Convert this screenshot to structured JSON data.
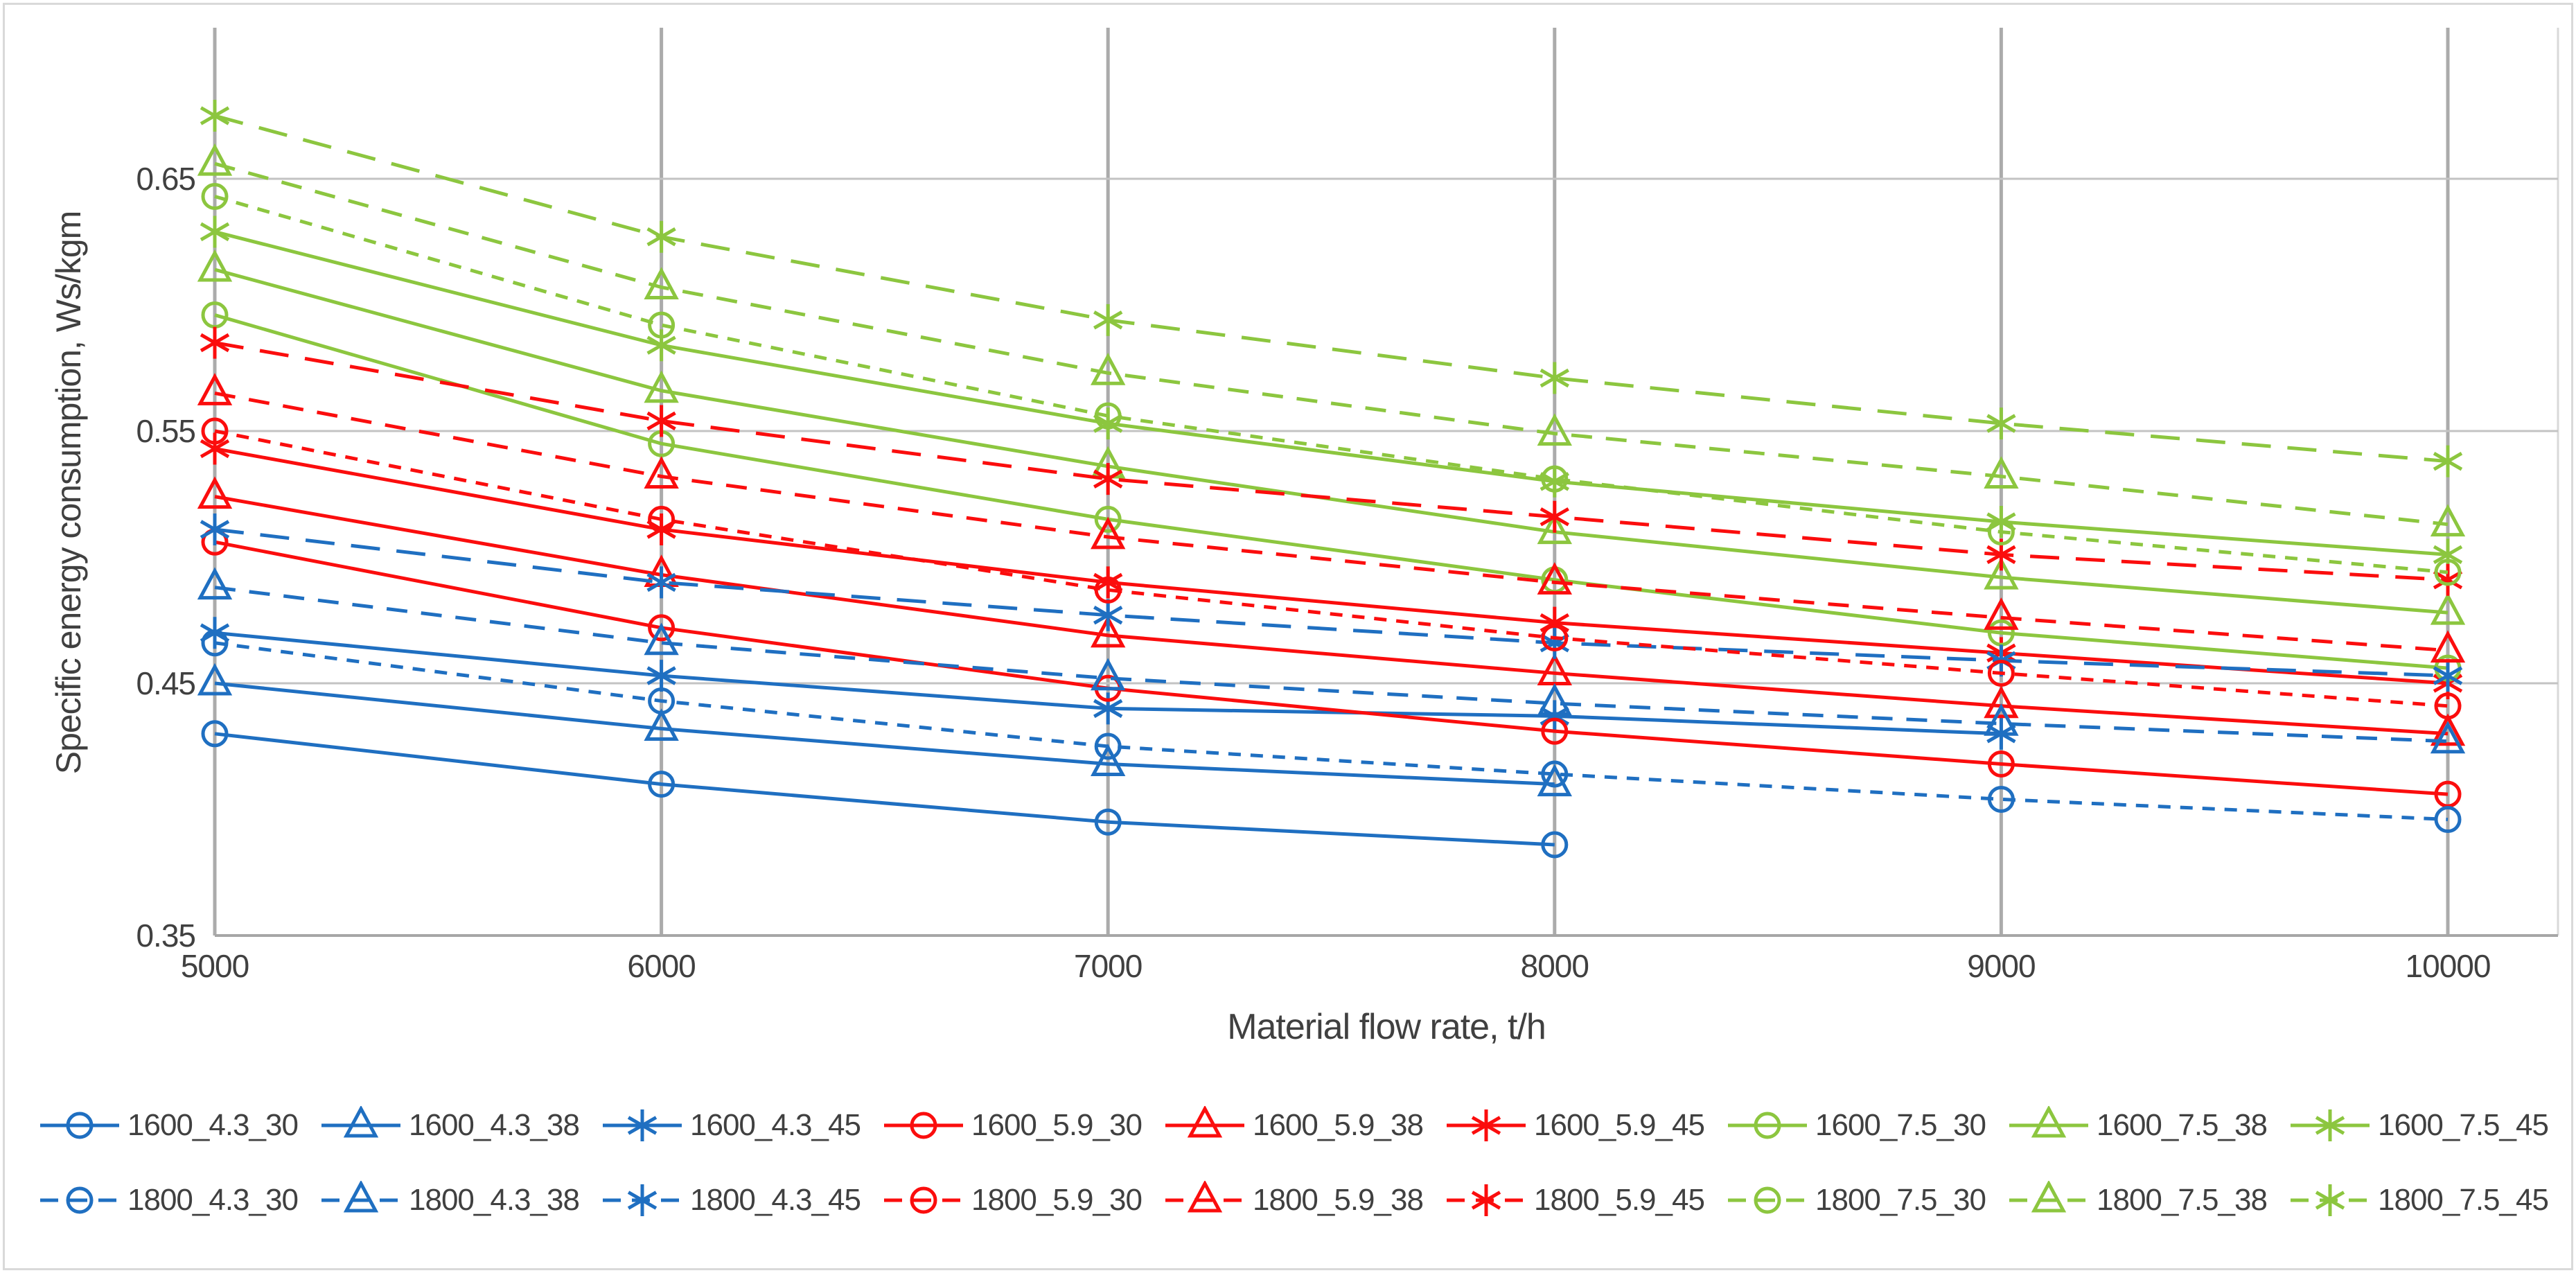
{
  "figure": {
    "y_axis_title": "Specific energy consumption,  Ws/kgm",
    "x_axis_title": "Material flow rate, t/h"
  },
  "chart_data": {
    "type": "line",
    "title": "",
    "xlabel": "Material flow rate, t/h",
    "ylabel": "Specific energy consumption, Ws/kgm",
    "x": [
      5000,
      6000,
      7000,
      8000,
      9000,
      10000
    ],
    "x_ticks": [
      "5000",
      "6000",
      "7000",
      "8000",
      "9000",
      "10000"
    ],
    "y_ticks": [
      "0.35",
      "0.45",
      "0.55",
      "0.65"
    ],
    "y_tick_values": [
      0.35,
      0.45,
      0.55,
      0.65
    ],
    "xlim": [
      5000,
      10000
    ],
    "ylim": [
      0.35,
      0.71
    ],
    "grid": "on",
    "legend_position": "bottom",
    "colors": {
      "4.3": "#1f6fc1",
      "5.9": "#fb0d0d",
      "7.5": "#8cc63f"
    },
    "grid_color_vertical": "#ababab",
    "grid_color_horizontal": "#c3c3c3",
    "axis_line_color": "#a6a6a6",
    "series": [
      {
        "name": "1600_4.3_30",
        "group": "4.3",
        "marker": "circle",
        "line": "solid",
        "values": [
          0.43,
          0.41,
          0.395,
          0.386,
          null,
          null
        ]
      },
      {
        "name": "1600_4.3_38",
        "group": "4.3",
        "marker": "triangle",
        "line": "solid",
        "values": [
          0.45,
          0.432,
          0.418,
          0.41,
          null,
          null
        ]
      },
      {
        "name": "1600_4.3_45",
        "group": "4.3",
        "marker": "asterisk",
        "line": "solid",
        "values": [
          0.47,
          0.453,
          0.44,
          0.437,
          0.43,
          null
        ]
      },
      {
        "name": "1600_5.9_30",
        "group": "5.9",
        "marker": "circle",
        "line": "solid",
        "values": [
          0.506,
          0.472,
          0.448,
          0.431,
          0.418,
          0.406
        ]
      },
      {
        "name": "1600_5.9_38",
        "group": "5.9",
        "marker": "triangle",
        "line": "solid",
        "values": [
          0.524,
          0.493,
          0.469,
          0.454,
          0.441,
          0.43
        ]
      },
      {
        "name": "1600_5.9_45",
        "group": "5.9",
        "marker": "asterisk",
        "line": "solid",
        "values": [
          0.543,
          0.511,
          0.49,
          0.474,
          0.462,
          0.45
        ]
      },
      {
        "name": "1600_7.5_30",
        "group": "7.5",
        "marker": "circle",
        "line": "solid",
        "values": [
          0.596,
          0.545,
          0.515,
          0.491,
          0.47,
          0.456
        ]
      },
      {
        "name": "1600_7.5_38",
        "group": "7.5",
        "marker": "triangle",
        "line": "solid",
        "values": [
          0.614,
          0.566,
          0.536,
          0.51,
          0.492,
          0.478
        ]
      },
      {
        "name": "1600_7.5_45",
        "group": "7.5",
        "marker": "asterisk",
        "line": "solid",
        "values": [
          0.629,
          0.584,
          0.553,
          0.53,
          0.514,
          0.501
        ]
      },
      {
        "name": "1800_4.3_30",
        "group": "4.3",
        "marker": "circle",
        "line": "dashed",
        "values": [
          0.466,
          0.443,
          0.425,
          0.414,
          0.404,
          0.396
        ]
      },
      {
        "name": "1800_4.3_38",
        "group": "4.3",
        "marker": "triangle",
        "line": "dashed",
        "values": [
          0.488,
          0.466,
          0.452,
          0.442,
          0.434,
          0.427
        ]
      },
      {
        "name": "1800_4.3_45",
        "group": "4.3",
        "marker": "asterisk",
        "line": "dashed",
        "values": [
          0.511,
          0.49,
          0.477,
          0.466,
          0.459,
          0.453
        ]
      },
      {
        "name": "1800_5.9_30",
        "group": "5.9",
        "marker": "circle",
        "line": "dashed",
        "values": [
          0.55,
          0.515,
          0.487,
          0.468,
          0.454,
          0.441
        ]
      },
      {
        "name": "1800_5.9_38",
        "group": "5.9",
        "marker": "triangle",
        "line": "dashed",
        "values": [
          0.565,
          0.532,
          0.508,
          0.49,
          0.476,
          0.463
        ]
      },
      {
        "name": "1800_5.9_45",
        "group": "5.9",
        "marker": "asterisk",
        "line": "dashed",
        "values": [
          0.585,
          0.554,
          0.531,
          0.516,
          0.501,
          0.491
        ]
      },
      {
        "name": "1800_7.5_30",
        "group": "7.5",
        "marker": "circle",
        "line": "dashed",
        "values": [
          0.643,
          0.592,
          0.556,
          0.531,
          0.51,
          0.494
        ]
      },
      {
        "name": "1800_7.5_38",
        "group": "7.5",
        "marker": "triangle",
        "line": "dashed",
        "values": [
          0.656,
          0.607,
          0.573,
          0.549,
          0.532,
          0.513
        ]
      },
      {
        "name": "1800_7.5_45",
        "group": "7.5",
        "marker": "asterisk",
        "line": "dashed",
        "values": [
          0.675,
          0.627,
          0.594,
          0.571,
          0.553,
          0.538
        ]
      }
    ],
    "legend_rows": [
      [
        "1600_4.3_30",
        "1600_4.3_38",
        "1600_4.3_45",
        "1600_5.9_30",
        "1600_5.9_38",
        "1600_5.9_45",
        "1600_7.5_30",
        "1600_7.5_38",
        "1600_7.5_45"
      ],
      [
        "1800_4.3_30",
        "1800_4.3_38",
        "1800_4.3_45",
        "1800_5.9_30",
        "1800_5.9_38",
        "1800_5.9_45",
        "1800_7.5_30",
        "1800_7.5_38",
        "1800_7.5_45"
      ]
    ]
  }
}
